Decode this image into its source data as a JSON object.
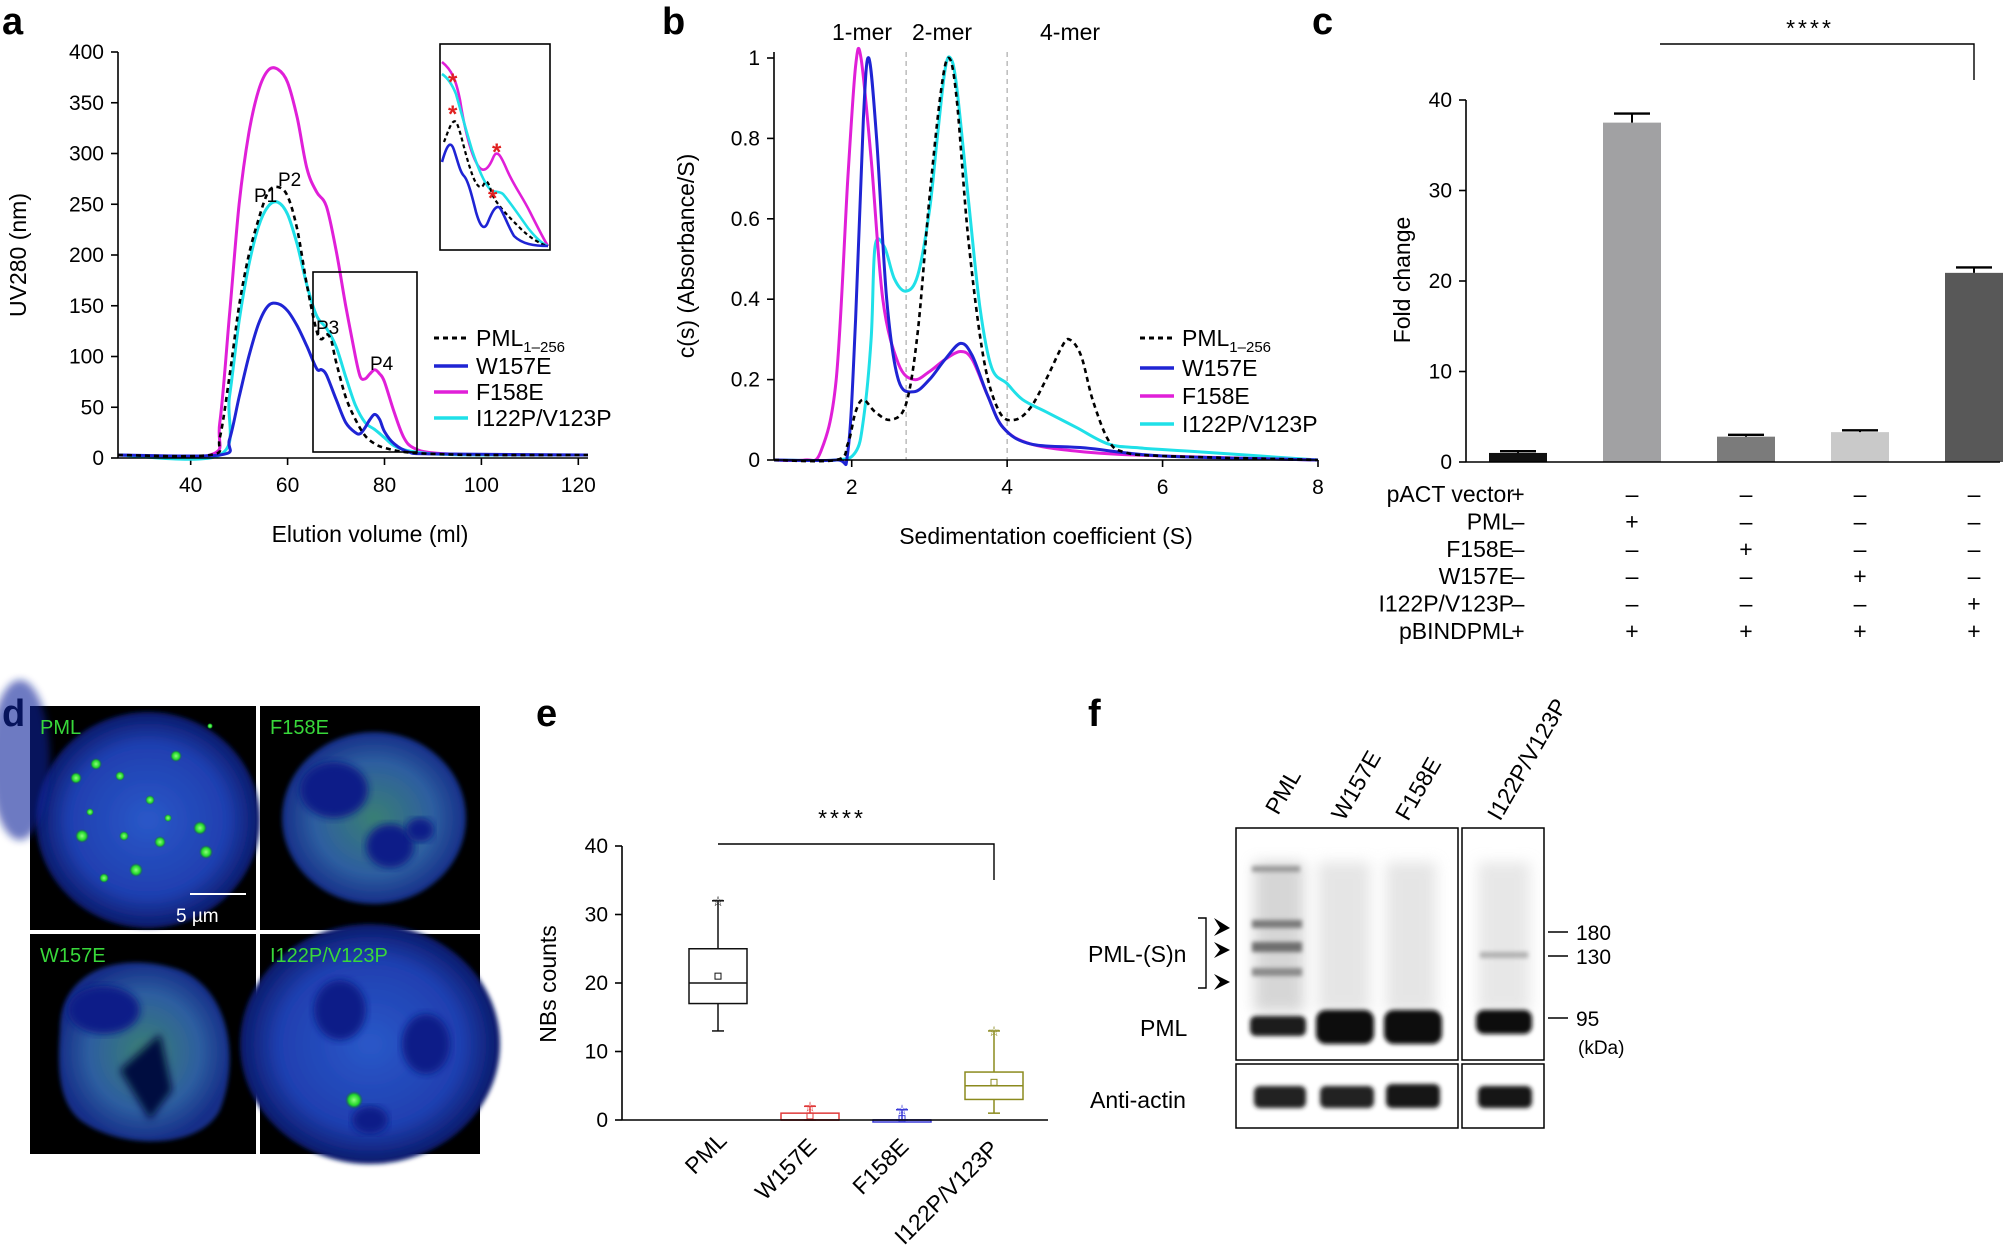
{
  "panel_labels": [
    "a",
    "b",
    "c",
    "d",
    "e",
    "f"
  ],
  "chart_data": [
    {
      "id": "a",
      "type": "line",
      "xlabel": "Elution volume (ml)",
      "ylabel": "UV280 (nm)",
      "xlim": [
        25,
        122
      ],
      "ylim": [
        0,
        400
      ],
      "xticks": [
        40,
        60,
        80,
        100,
        120
      ],
      "yticks": [
        0,
        50,
        100,
        150,
        200,
        250,
        300,
        350,
        400
      ],
      "peak_labels": [
        "P1",
        "P2",
        "P3",
        "P4"
      ],
      "inset_marker": "*",
      "series": [
        {
          "name": "PML",
          "name_sub": "1–256",
          "color": "#000000",
          "dash": true,
          "points": [
            [
              25,
              3
            ],
            [
              44,
              3
            ],
            [
              46,
              20
            ],
            [
              48,
              80
            ],
            [
              50,
              150
            ],
            [
              52,
              200
            ],
            [
              54,
              235
            ],
            [
              56,
              262
            ],
            [
              58,
              267
            ],
            [
              60,
              258
            ],
            [
              62,
              225
            ],
            [
              64,
              170
            ],
            [
              66,
              125
            ],
            [
              67,
              117
            ],
            [
              68,
              122
            ],
            [
              69,
              116
            ],
            [
              70,
              95
            ],
            [
              72,
              60
            ],
            [
              74,
              38
            ],
            [
              76,
              22
            ],
            [
              78,
              14
            ],
            [
              80,
              10
            ],
            [
              84,
              6
            ],
            [
              90,
              4
            ],
            [
              100,
              3
            ],
            [
              122,
              3
            ]
          ]
        },
        {
          "name": "W157E",
          "color": "#1f24d4",
          "points": [
            [
              25,
              3
            ],
            [
              46,
              3
            ],
            [
              48,
              18
            ],
            [
              50,
              60
            ],
            [
              52,
              100
            ],
            [
              54,
              132
            ],
            [
              56,
              150
            ],
            [
              58,
              152
            ],
            [
              60,
              145
            ],
            [
              62,
              130
            ],
            [
              64,
              110
            ],
            [
              66,
              88
            ],
            [
              67,
              87
            ],
            [
              68,
              82
            ],
            [
              70,
              58
            ],
            [
              72,
              35
            ],
            [
              74,
              25
            ],
            [
              75,
              24
            ],
            [
              76,
              30
            ],
            [
              77,
              38
            ],
            [
              78,
              43
            ],
            [
              79,
              38
            ],
            [
              80,
              26
            ],
            [
              82,
              14
            ],
            [
              85,
              6
            ],
            [
              90,
              4
            ],
            [
              122,
              3
            ]
          ]
        },
        {
          "name": "F158E",
          "color": "#e01fd8",
          "points": [
            [
              25,
              3
            ],
            [
              44,
              3
            ],
            [
              46,
              35
            ],
            [
              48,
              140
            ],
            [
              50,
              250
            ],
            [
              52,
              320
            ],
            [
              54,
              362
            ],
            [
              56,
              382
            ],
            [
              58,
              383
            ],
            [
              60,
              370
            ],
            [
              62,
              335
            ],
            [
              64,
              285
            ],
            [
              66,
              262
            ],
            [
              68,
              248
            ],
            [
              70,
              205
            ],
            [
              72,
              150
            ],
            [
              74,
              100
            ],
            [
              75,
              80
            ],
            [
              76,
              78
            ],
            [
              77,
              83
            ],
            [
              78,
              87
            ],
            [
              79,
              83
            ],
            [
              80,
              75
            ],
            [
              82,
              45
            ],
            [
              84,
              20
            ],
            [
              86,
              10
            ],
            [
              90,
              5
            ],
            [
              100,
              3
            ],
            [
              122,
              3
            ]
          ]
        },
        {
          "name": "I122P/V123P",
          "color": "#1fe0e8",
          "points": [
            [
              25,
              3
            ],
            [
              46,
              3
            ],
            [
              48,
              60
            ],
            [
              50,
              135
            ],
            [
              52,
              190
            ],
            [
              54,
              228
            ],
            [
              56,
              248
            ],
            [
              58,
              252
            ],
            [
              60,
              240
            ],
            [
              62,
              210
            ],
            [
              64,
              170
            ],
            [
              66,
              140
            ],
            [
              68,
              128
            ],
            [
              70,
              110
            ],
            [
              72,
              80
            ],
            [
              74,
              52
            ],
            [
              76,
              35
            ],
            [
              78,
              28
            ],
            [
              80,
              20
            ],
            [
              82,
              12
            ],
            [
              85,
              7
            ],
            [
              90,
              4
            ],
            [
              100,
              3
            ],
            [
              122,
              3
            ]
          ]
        }
      ],
      "legend_location": "right"
    },
    {
      "id": "b",
      "type": "line",
      "xlabel": "Sedimentation coefficient (S)",
      "ylabel": "c(s) (Absorbance/S)",
      "xlim": [
        1,
        8
      ],
      "ylim": [
        0,
        1
      ],
      "xticks": [
        2,
        4,
        6,
        8
      ],
      "yticks": [
        0,
        0.2,
        0.4,
        0.6,
        0.8,
        1
      ],
      "ytick_labels": [
        "0",
        "0.2",
        "0.4",
        "0.6",
        "0.8",
        "1"
      ],
      "oligomer_labels": [
        "1-mer",
        "2-mer",
        "4-mer"
      ],
      "dividers_s": [
        2.7,
        4.0
      ],
      "series": [
        {
          "name": "PML",
          "name_sub": "1–256",
          "color": "#000000",
          "dash": true,
          "points": [
            [
              1,
              0
            ],
            [
              1.8,
              0
            ],
            [
              1.95,
              0.04
            ],
            [
              2.05,
              0.12
            ],
            [
              2.15,
              0.15
            ],
            [
              2.3,
              0.12
            ],
            [
              2.5,
              0.1
            ],
            [
              2.7,
              0.14
            ],
            [
              2.85,
              0.32
            ],
            [
              3.0,
              0.65
            ],
            [
              3.15,
              0.92
            ],
            [
              3.25,
              1.0
            ],
            [
              3.35,
              0.9
            ],
            [
              3.5,
              0.55
            ],
            [
              3.7,
              0.25
            ],
            [
              3.9,
              0.12
            ],
            [
              4.1,
              0.1
            ],
            [
              4.3,
              0.13
            ],
            [
              4.5,
              0.2
            ],
            [
              4.7,
              0.28
            ],
            [
              4.8,
              0.3
            ],
            [
              4.95,
              0.26
            ],
            [
              5.1,
              0.15
            ],
            [
              5.3,
              0.05
            ],
            [
              5.5,
              0.02
            ],
            [
              6,
              0.01
            ],
            [
              8,
              0
            ]
          ]
        },
        {
          "name": "W157E",
          "color": "#1f24d4",
          "points": [
            [
              1,
              0
            ],
            [
              1.8,
              0
            ],
            [
              1.95,
              0.02
            ],
            [
              2.05,
              0.35
            ],
            [
              2.15,
              0.85
            ],
            [
              2.22,
              1.0
            ],
            [
              2.32,
              0.8
            ],
            [
              2.45,
              0.4
            ],
            [
              2.6,
              0.2
            ],
            [
              2.8,
              0.17
            ],
            [
              3.0,
              0.2
            ],
            [
              3.2,
              0.25
            ],
            [
              3.4,
              0.29
            ],
            [
              3.55,
              0.26
            ],
            [
              3.75,
              0.16
            ],
            [
              3.95,
              0.08
            ],
            [
              4.3,
              0.04
            ],
            [
              5,
              0.03
            ],
            [
              6,
              0.01
            ],
            [
              8,
              0
            ]
          ]
        },
        {
          "name": "F158E",
          "color": "#e01fd8",
          "points": [
            [
              1,
              0
            ],
            [
              1.4,
              0
            ],
            [
              1.6,
              0.02
            ],
            [
              1.8,
              0.2
            ],
            [
              1.95,
              0.7
            ],
            [
              2.05,
              0.98
            ],
            [
              2.12,
              1.0
            ],
            [
              2.25,
              0.75
            ],
            [
              2.4,
              0.4
            ],
            [
              2.6,
              0.24
            ],
            [
              2.8,
              0.2
            ],
            [
              3.0,
              0.22
            ],
            [
              3.2,
              0.25
            ],
            [
              3.4,
              0.27
            ],
            [
              3.55,
              0.25
            ],
            [
              3.75,
              0.16
            ],
            [
              3.95,
              0.08
            ],
            [
              4.3,
              0.04
            ],
            [
              5,
              0.02
            ],
            [
              6,
              0.01
            ],
            [
              8,
              0
            ]
          ]
        },
        {
          "name": "I122P/V123P",
          "color": "#1fe0e8",
          "points": [
            [
              1,
              0
            ],
            [
              1.8,
              0
            ],
            [
              2.05,
              0.02
            ],
            [
              2.15,
              0.1
            ],
            [
              2.25,
              0.3
            ],
            [
              2.3,
              0.53
            ],
            [
              2.42,
              0.53
            ],
            [
              2.55,
              0.45
            ],
            [
              2.7,
              0.42
            ],
            [
              2.85,
              0.46
            ],
            [
              3.0,
              0.62
            ],
            [
              3.1,
              0.8
            ],
            [
              3.2,
              0.97
            ],
            [
              3.27,
              1.0
            ],
            [
              3.35,
              0.93
            ],
            [
              3.5,
              0.65
            ],
            [
              3.65,
              0.38
            ],
            [
              3.8,
              0.23
            ],
            [
              4.0,
              0.19
            ],
            [
              4.2,
              0.15
            ],
            [
              4.5,
              0.12
            ],
            [
              4.9,
              0.08
            ],
            [
              5.3,
              0.04
            ],
            [
              5.7,
              0.03
            ],
            [
              6.5,
              0.02
            ],
            [
              8,
              0
            ]
          ]
        }
      ],
      "legend_location": "right"
    },
    {
      "id": "c",
      "type": "bar",
      "ylabel": "Fold change",
      "ylim": [
        0,
        40
      ],
      "yticks": [
        0,
        10,
        20,
        30,
        40
      ],
      "values": [
        1.0,
        37.5,
        2.8,
        3.3,
        20.9
      ],
      "errors": [
        0.2,
        1.0,
        0.2,
        0.2,
        0.6
      ],
      "colors": [
        "#111111",
        "#a1a1a3",
        "#7b7b7b",
        "#c9c9c9",
        "#585858"
      ],
      "significance": "****",
      "table_rows": [
        {
          "label": "pACT vector",
          "signs": [
            "+",
            "–",
            "–",
            "–",
            "–"
          ]
        },
        {
          "label": "PML",
          "signs": [
            "–",
            "+",
            "–",
            "–",
            "–"
          ]
        },
        {
          "label": "F158E",
          "signs": [
            "–",
            "–",
            "+",
            "–",
            "–"
          ]
        },
        {
          "label": "W157E",
          "signs": [
            "–",
            "–",
            "–",
            "+",
            "–"
          ]
        },
        {
          "label": "I122P/V123P",
          "signs": [
            "–",
            "–",
            "–",
            "–",
            "+"
          ]
        },
        {
          "label": "pBINDPML",
          "signs": [
            "+",
            "+",
            "+",
            "+",
            "+"
          ]
        }
      ]
    },
    {
      "id": "e",
      "type": "box",
      "ylabel": "NBs counts",
      "ylim": [
        0,
        40
      ],
      "yticks": [
        0,
        10,
        20,
        30,
        40
      ],
      "categories": [
        "PML",
        "W157E",
        "F158E",
        "I122P/V123P"
      ],
      "colors": [
        "#111111",
        "#e03a3a",
        "#3a3ad8",
        "#8b8a1e"
      ],
      "boxes": [
        {
          "min": 13,
          "q1": 17,
          "median": 20,
          "q3": 25,
          "max": 32,
          "mean": 21
        },
        {
          "min": 0,
          "q1": 0,
          "median": 0,
          "q3": 1,
          "max": 2,
          "mean": 0.6
        },
        {
          "min": 0,
          "q1": 0,
          "median": 0,
          "q3": 0,
          "max": 1.5,
          "mean": 0.2
        },
        {
          "min": 1,
          "q1": 3,
          "median": 5,
          "q3": 7,
          "max": 13,
          "mean": 5.5
        }
      ],
      "significance": "****"
    }
  ],
  "microscopy": {
    "panels": [
      "PML",
      "F158E",
      "W157E",
      "I122P/V123P"
    ],
    "scale_bar": "5 µm"
  },
  "western": {
    "lanes": [
      "PML",
      "W157E",
      "F158E",
      "I122P/V123P"
    ],
    "row_labels": {
      "sumo": "PML-(S)n",
      "pml": "PML",
      "actin": "Anti-actin"
    },
    "markers": [
      "180",
      "130",
      "95"
    ],
    "unit": "(kDa)"
  }
}
